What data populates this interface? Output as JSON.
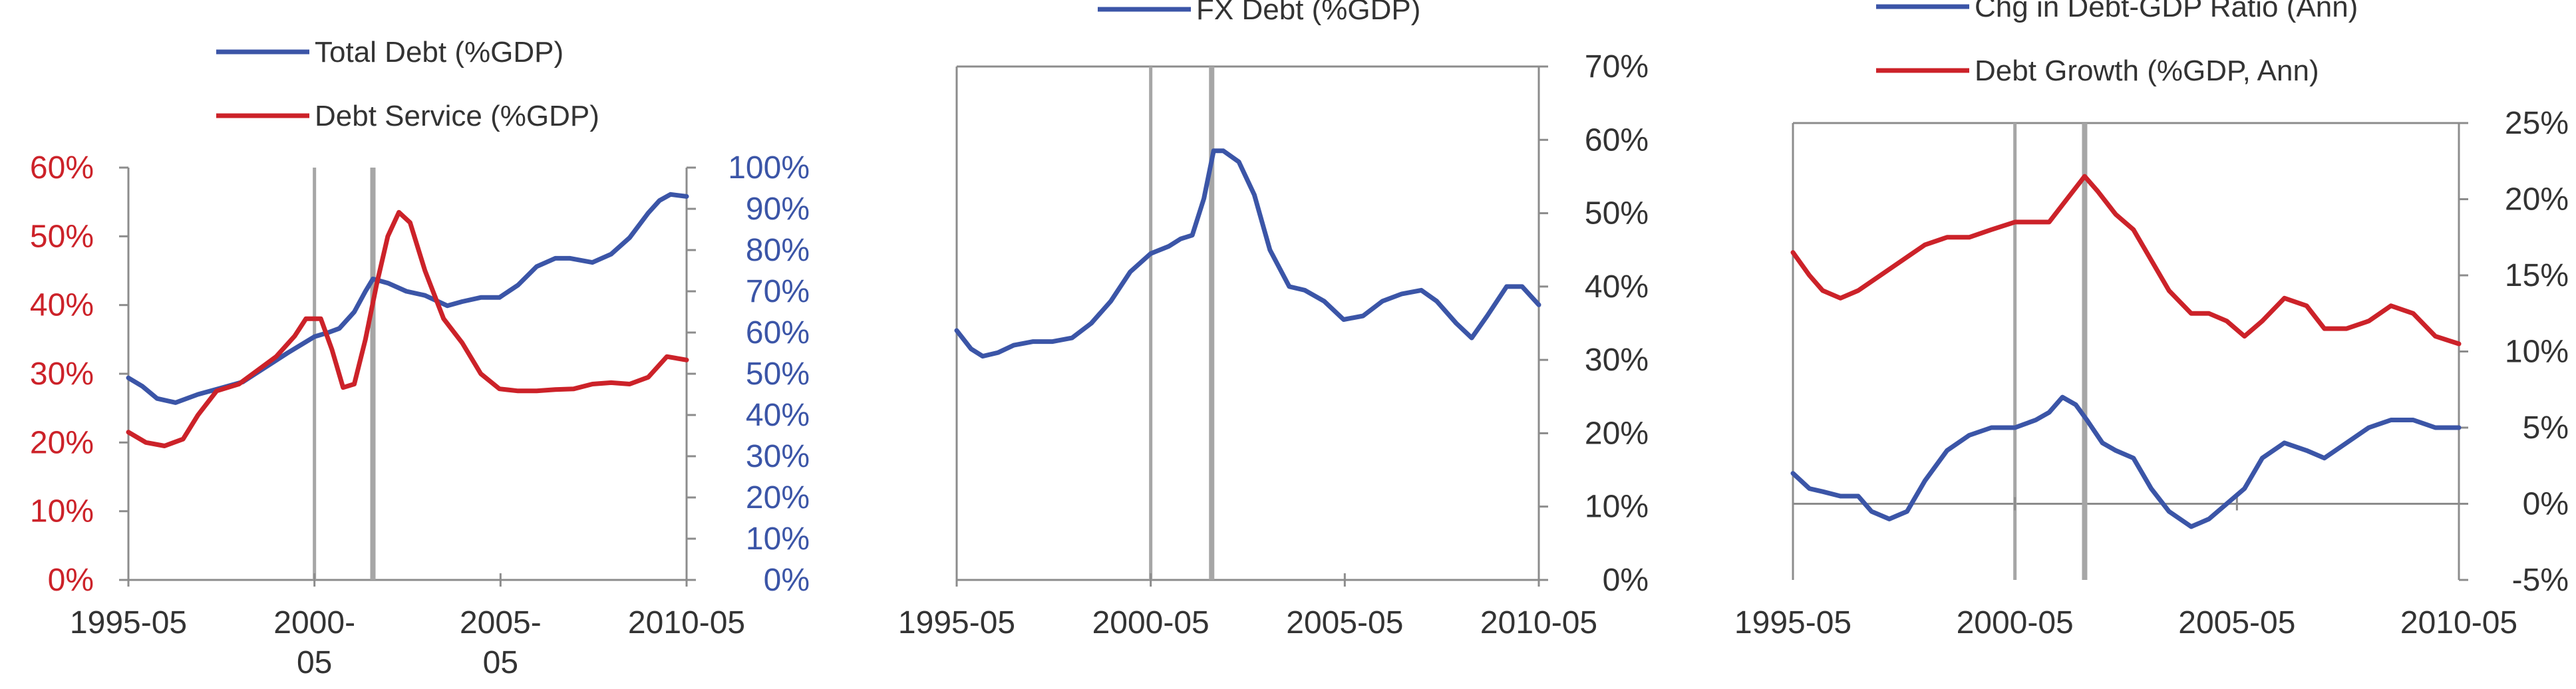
{
  "colors": {
    "blue": "#3b55a7",
    "red": "#cc2229",
    "axis": "#8c8c8c",
    "text": "#333333",
    "marker": "#a6a6a6"
  },
  "chart_data": [
    {
      "type": "line",
      "title": "",
      "legend": [
        "Total Debt (%GDP)",
        "Debt Service (%GDP)"
      ],
      "x_ticks": [
        "1995-05",
        "2000-05",
        "2005-05",
        "2010-05"
      ],
      "x_range": [
        1995.33,
        2010.33
      ],
      "vertical_markers": [
        2000.33,
        2001.9
      ],
      "left_axis": {
        "series": "Debt Service (%GDP)",
        "range": [
          0,
          60
        ],
        "ticks": [
          "0%",
          "10%",
          "20%",
          "30%",
          "40%",
          "50%",
          "60%"
        ],
        "color": "red"
      },
      "right_axis": {
        "series": "Total Debt (%GDP)",
        "range": [
          0,
          100
        ],
        "ticks": [
          "0%",
          "10%",
          "20%",
          "30%",
          "40%",
          "50%",
          "60%",
          "70%",
          "80%",
          "90%",
          "100%"
        ],
        "color": "blue"
      },
      "series": [
        {
          "name": "Total Debt (%GDP)",
          "axis": "right",
          "color": "blue",
          "x": [
            1995.33,
            1995.7,
            1996.1,
            1996.6,
            1997.2,
            1997.8,
            1998.4,
            1999.0,
            1999.6,
            2000.33,
            2000.7,
            2001.0,
            2001.4,
            2001.7,
            2001.9,
            2002.3,
            2002.8,
            2003.3,
            2003.9,
            2004.3,
            2004.8,
            2005.3,
            2005.8,
            2006.3,
            2006.8,
            2007.2,
            2007.8,
            2008.3,
            2008.8,
            2009.3,
            2009.6,
            2009.9,
            2010.33
          ],
          "y": [
            49,
            47,
            44,
            43,
            45,
            46.5,
            48,
            51.5,
            55,
            59,
            60,
            61,
            65,
            70,
            73,
            72,
            70,
            69,
            66.5,
            67.5,
            68.5,
            68.5,
            71.5,
            76,
            78,
            78,
            77,
            79,
            83,
            89,
            92,
            93.5,
            93
          ]
        },
        {
          "name": "Debt Service (%GDP)",
          "axis": "left",
          "color": "red",
          "x": [
            1995.33,
            1995.8,
            1996.3,
            1996.8,
            1997.2,
            1997.7,
            1998.3,
            1998.8,
            1999.3,
            1999.8,
            2000.1,
            2000.5,
            2000.8,
            2001.1,
            2001.4,
            2001.7,
            2002.0,
            2002.3,
            2002.6,
            2002.9,
            2003.3,
            2003.8,
            2004.3,
            2004.8,
            2005.3,
            2005.8,
            2006.3,
            2006.8,
            2007.3,
            2007.8,
            2008.3,
            2008.8,
            2009.3,
            2009.8,
            2010.33
          ],
          "y": [
            21.5,
            20,
            19.5,
            20.5,
            24,
            27.5,
            28.5,
            30.5,
            32.5,
            35.5,
            38,
            38,
            33.5,
            28,
            28.5,
            35,
            43,
            50,
            53.5,
            52,
            45,
            38,
            34.5,
            30,
            27.8,
            27.5,
            27.5,
            27.7,
            27.8,
            28.5,
            28.7,
            28.5,
            29.5,
            32.5,
            32
          ]
        }
      ]
    },
    {
      "type": "line",
      "title": "",
      "legend": [
        "FX Debt (%GDP)"
      ],
      "x_ticks": [
        "1995-05",
        "2000-05",
        "2005-05",
        "2010-05"
      ],
      "x_range": [
        1995.33,
        2010.33
      ],
      "vertical_markers": [
        2000.33,
        2001.9
      ],
      "right_axis": {
        "series": "FX Debt (%GDP)",
        "range": [
          0,
          70
        ],
        "ticks": [
          "0%",
          "10%",
          "20%",
          "30%",
          "40%",
          "50%",
          "60%",
          "70%"
        ],
        "color": "text"
      },
      "series": [
        {
          "name": "FX Debt (%GDP)",
          "axis": "right",
          "color": "blue",
          "x": [
            1995.33,
            1995.7,
            1996.0,
            1996.4,
            1996.8,
            1997.3,
            1997.8,
            1998.3,
            1998.8,
            1999.3,
            1999.8,
            2000.33,
            2000.8,
            2001.1,
            2001.4,
            2001.7,
            2001.95,
            2002.2,
            2002.6,
            2003.0,
            2003.4,
            2003.9,
            2004.3,
            2004.8,
            2005.3,
            2005.8,
            2006.3,
            2006.8,
            2007.3,
            2007.7,
            2008.2,
            2008.6,
            2009.0,
            2009.5,
            2009.9,
            2010.33
          ],
          "y": [
            34,
            31.5,
            30.5,
            31,
            32,
            32.5,
            32.5,
            33,
            35,
            38,
            42,
            44.5,
            45.5,
            46.5,
            47,
            52,
            58.5,
            58.5,
            57,
            52.5,
            45,
            40,
            39.5,
            38,
            35.5,
            36,
            38,
            39,
            39.5,
            38,
            35,
            33,
            36,
            40,
            40,
            37.5
          ]
        }
      ]
    },
    {
      "type": "line",
      "title": "",
      "legend": [
        "Chg in Debt-GDP Ratio (Ann)",
        "Debt Growth (%GDP, Ann)"
      ],
      "x_ticks": [
        "1995-05",
        "2000-05",
        "2005-05",
        "2010-05"
      ],
      "x_range": [
        1995.33,
        2010.33
      ],
      "vertical_markers": [
        2000.33,
        2001.9
      ],
      "right_axis": {
        "series": "both",
        "range": [
          -5,
          25
        ],
        "ticks": [
          "-5%",
          "0%",
          "5%",
          "10%",
          "15%",
          "20%",
          "25%"
        ],
        "color": "text"
      },
      "series": [
        {
          "name": "Chg in Debt-GDP Ratio (Ann)",
          "axis": "right",
          "color": "blue",
          "x": [
            1995.33,
            1995.7,
            1996.0,
            1996.4,
            1996.8,
            1997.1,
            1997.5,
            1997.9,
            1998.3,
            1998.8,
            1999.3,
            1999.8,
            2000.33,
            2000.8,
            2001.1,
            2001.4,
            2001.7,
            2001.95,
            2002.3,
            2002.6,
            2003.0,
            2003.4,
            2003.8,
            2004.3,
            2004.7,
            2005.1,
            2005.5,
            2005.9,
            2006.4,
            2006.9,
            2007.3,
            2007.8,
            2008.3,
            2008.8,
            2009.3,
            2009.8,
            2010.33
          ],
          "y": [
            2,
            1,
            0.8,
            0.5,
            0.5,
            -0.5,
            -1,
            -0.5,
            1.5,
            3.5,
            4.5,
            5,
            5,
            5.5,
            6,
            7,
            6.5,
            5.5,
            4,
            3.5,
            3,
            1,
            -0.5,
            -1.5,
            -1,
            0,
            1,
            3,
            4,
            3.5,
            3,
            4,
            5,
            5.5,
            5.5,
            5,
            5
          ]
        },
        {
          "name": "Debt Growth (%GDP, Ann)",
          "axis": "right",
          "color": "red",
          "x": [
            1995.33,
            1995.7,
            1996.0,
            1996.4,
            1996.8,
            1997.3,
            1997.8,
            1998.3,
            1998.8,
            1999.3,
            1999.8,
            2000.33,
            2000.8,
            2001.1,
            2001.5,
            2001.9,
            2002.2,
            2002.6,
            2003.0,
            2003.4,
            2003.8,
            2004.3,
            2004.7,
            2005.1,
            2005.5,
            2005.9,
            2006.4,
            2006.9,
            2007.3,
            2007.8,
            2008.3,
            2008.8,
            2009.3,
            2009.8,
            2010.33
          ],
          "y": [
            16.5,
            15,
            14,
            13.5,
            14,
            15,
            16,
            17,
            17.5,
            17.5,
            18,
            18.5,
            18.5,
            18.5,
            20,
            21.5,
            20.5,
            19,
            18,
            16,
            14,
            12.5,
            12.5,
            12,
            11,
            12,
            13.5,
            13,
            11.5,
            11.5,
            12,
            13,
            12.5,
            11,
            10.5
          ]
        }
      ]
    }
  ]
}
